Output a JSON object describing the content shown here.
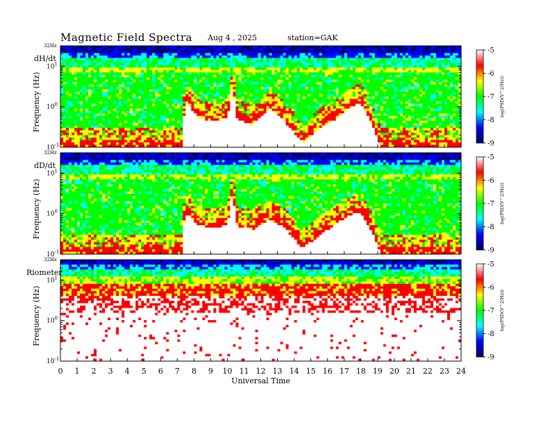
{
  "header": {
    "title": "Magnetic  Field  Spectra",
    "date": "Aug 4  , 2025",
    "station": "station=GAK"
  },
  "colors": {
    "colorbar_stops": [
      "#000060",
      "#0000ff",
      "#00ffff",
      "#00ff00",
      "#ffff00",
      "#ff0000",
      "#ffffff"
    ],
    "background": "#ffffff"
  },
  "chart_data": [
    {
      "type": "heatmap",
      "panel_label": "dH/dt",
      "ylabel": "Frequency  (Hz)",
      "y_top_label": "32Hz",
      "y_scale": "log",
      "y_ticks": [
        {
          "value": 0.1,
          "label": "10",
          "exp": "-1"
        },
        {
          "value": 1,
          "label": "10",
          "exp": "0"
        },
        {
          "value": 10,
          "label": "10",
          "exp": "1"
        }
      ],
      "ylim": [
        0.1,
        32
      ],
      "xlim": [
        0,
        24
      ],
      "colorbar": {
        "label": "log(PSD(V^2/Hz))",
        "ticks": [
          "-5",
          "-6",
          "-7",
          "-8",
          "-9"
        ],
        "range": [
          -9,
          -5
        ]
      },
      "bright_line_hz": 7.8,
      "red_edge_profile_hz": [
        [
          0,
          0.1
        ],
        [
          7.3,
          0.1
        ],
        [
          7.4,
          0.55
        ],
        [
          7.6,
          1.3
        ],
        [
          8.2,
          0.55
        ],
        [
          9,
          0.45
        ],
        [
          10,
          0.5
        ],
        [
          10.3,
          3.0
        ],
        [
          10.6,
          0.5
        ],
        [
          11.5,
          0.35
        ],
        [
          12.5,
          0.9
        ],
        [
          13.3,
          0.5
        ],
        [
          14.5,
          0.13
        ],
        [
          15.5,
          0.28
        ],
        [
          16.5,
          0.5
        ],
        [
          17.5,
          1.0
        ],
        [
          18,
          1.25
        ],
        [
          18.6,
          0.4
        ],
        [
          19.2,
          0.1
        ],
        [
          24,
          0.1
        ]
      ]
    },
    {
      "type": "heatmap",
      "panel_label": "dD/dt",
      "ylabel": "Frequency  (Hz)",
      "y_top_label": "32Hz",
      "y_scale": "log",
      "y_ticks": [
        {
          "value": 0.1,
          "label": "10",
          "exp": "-1"
        },
        {
          "value": 1,
          "label": "10",
          "exp": "0"
        },
        {
          "value": 10,
          "label": "10",
          "exp": "1"
        }
      ],
      "ylim": [
        0.1,
        32
      ],
      "xlim": [
        0,
        24
      ],
      "colorbar": {
        "label": "log(PSD(V^2/Hz))",
        "ticks": [
          "-5",
          "-6",
          "-7",
          "-8",
          "-9"
        ],
        "range": [
          -9,
          -5
        ]
      },
      "bright_line_hz": 7.8,
      "red_edge_profile_hz": [
        [
          0,
          0.1
        ],
        [
          7.3,
          0.1
        ],
        [
          7.4,
          0.6
        ],
        [
          7.6,
          1.0
        ],
        [
          8.2,
          0.55
        ],
        [
          9,
          0.45
        ],
        [
          10,
          0.5
        ],
        [
          10.3,
          3.0
        ],
        [
          10.6,
          0.5
        ],
        [
          11.5,
          0.4
        ],
        [
          12.5,
          0.7
        ],
        [
          13.3,
          0.5
        ],
        [
          14.5,
          0.14
        ],
        [
          15.5,
          0.28
        ],
        [
          16.5,
          0.55
        ],
        [
          17.5,
          1.0
        ],
        [
          18,
          1.1
        ],
        [
          18.6,
          0.4
        ],
        [
          19.2,
          0.1
        ],
        [
          24,
          0.1
        ]
      ]
    },
    {
      "type": "heatmap",
      "panel_label": "Riometer",
      "ylabel": "Frequency  (Hz)",
      "y_top_label": "32Hz",
      "y_scale": "log",
      "y_ticks": [
        {
          "value": 0.1,
          "label": "10",
          "exp": "-1"
        },
        {
          "value": 1,
          "label": "10",
          "exp": "0"
        },
        {
          "value": 10,
          "label": "10",
          "exp": "1"
        }
      ],
      "ylim": [
        0.1,
        32
      ],
      "xlim": [
        0,
        24
      ],
      "xlabel": "Universal  Time",
      "x_ticks": [
        "0",
        "1",
        "2",
        "3",
        "4",
        "5",
        "6",
        "7",
        "8",
        "9",
        "10",
        "11",
        "12",
        "13",
        "14",
        "15",
        "16",
        "17",
        "18",
        "19",
        "20",
        "21",
        "22",
        "23",
        "24"
      ],
      "colorbar": {
        "label": "log(PSD(V^2/Hz))",
        "ticks": [
          "-5",
          "-6",
          "-7",
          "-8",
          "-9"
        ],
        "range": [
          -9,
          -5
        ]
      },
      "red_edge_profile_hz": [
        [
          0,
          2.5
        ],
        [
          24,
          2.5
        ]
      ]
    }
  ]
}
